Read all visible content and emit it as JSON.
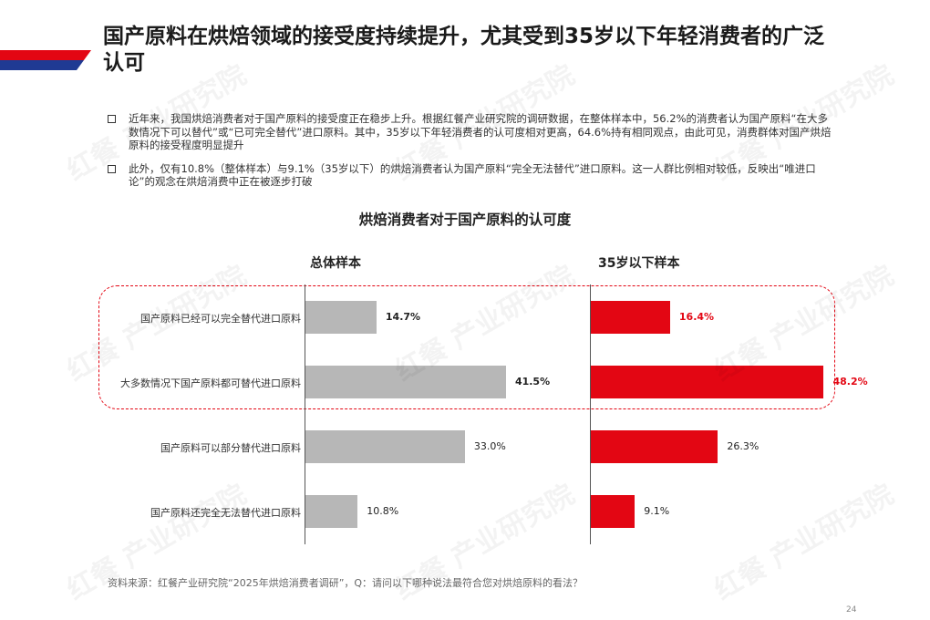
{
  "title": "国产原料在烘焙领域的接受度持续提升，尤其受到35岁以下年轻消费者的广泛认可",
  "bullets": [
    "近年来，我国烘焙消费者对于国产原料的接受度正在稳步上升。根据红餐产业研究院的调研数据，在整体样本中，56.2%的消费者认为国产原料“在大多数情况下可以替代”或“已可完全替代”进口原料。其中，35岁以下年轻消费者的认可度相对更高，64.6%持有相同观点，由此可见，消费群体对国产烘焙原料的接受程度明显提升",
    "此外，仅有10.8%（整体样本）与9.1%（35岁以下）的烘焙消费者认为国产原料“完全无法替代”进口原料。这一人群比例相对较低，反映出“唯进口论”的观念在烘焙消费中正在被逐步打破"
  ],
  "watermark": "红餐 产业研究院",
  "source": "资料来源：红餐产业研究院“2025年烘焙消费者调研”，Q：请问以下哪种说法最符合您对烘焙原料的看法？",
  "page_number": "24",
  "colors": {
    "accent_red": "#e30613",
    "accent_blue": "#1f3a93",
    "bar_grey": "#b7b7b7"
  },
  "chart_data": {
    "type": "bar",
    "orientation": "horizontal",
    "title": "烘焙消费者对于国产原料的认可度",
    "categories": [
      "国产原料已经可以完全替代进口原料",
      "大多数情况下国产原料都可替代进口原料",
      "国产原料可以部分替代进口原料",
      "国产原料还完全无法替代进口原料"
    ],
    "series": [
      {
        "name": "总体样本",
        "values": [
          14.7,
          41.5,
          33.0,
          10.8
        ],
        "labels": [
          "14.7%",
          "41.5%",
          "33.0%",
          "10.8%"
        ]
      },
      {
        "name": "35岁以下样本",
        "values": [
          16.4,
          48.2,
          26.3,
          9.1
        ],
        "labels": [
          "16.4%",
          "48.2%",
          "26.3%",
          "9.1%"
        ]
      }
    ],
    "highlighted_categories": [
      0,
      1
    ],
    "xlim": [
      0,
      55
    ]
  }
}
